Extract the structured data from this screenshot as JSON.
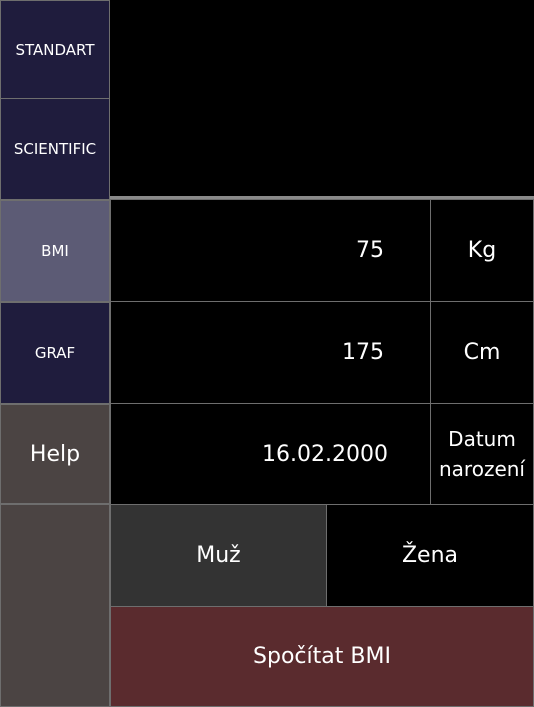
{
  "sidebar": {
    "items": [
      {
        "label": "STANDART"
      },
      {
        "label": "SCIENTIFIC"
      },
      {
        "label": "BMI",
        "active": true
      },
      {
        "label": "GRAF"
      },
      {
        "label": "Help"
      }
    ]
  },
  "display": {
    "value": ""
  },
  "inputs": {
    "weight": {
      "value": "75",
      "unit": "Kg"
    },
    "height": {
      "value": "175",
      "unit": "Cm"
    },
    "birthdate": {
      "value": "16.02.2000",
      "unit": "Datum\nnarození"
    }
  },
  "gender": {
    "male_label": "Muž",
    "female_label": "Žena",
    "selected": "male"
  },
  "actions": {
    "calculate_label": "Spočítat BMI"
  },
  "colors": {
    "nav_default": "#1f1c3d",
    "nav_active": "#5c5b75",
    "nav_help": "#4b4443",
    "selected_gender": "#333333",
    "calculate_button": "#5a2b2e",
    "border": "#6e6e6e"
  }
}
